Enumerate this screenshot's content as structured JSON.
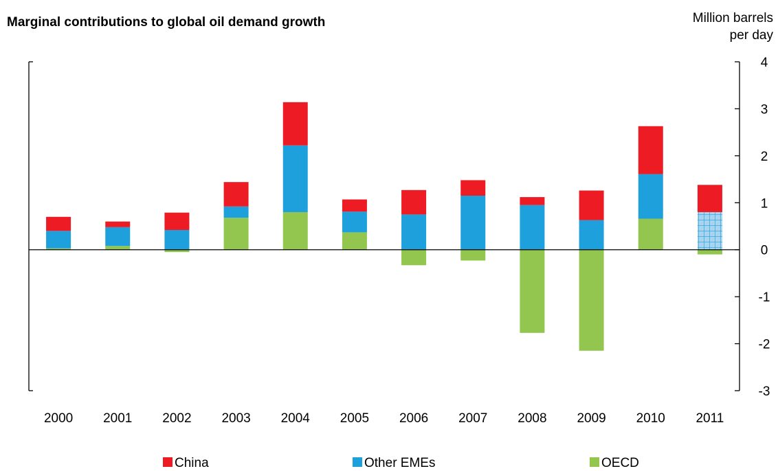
{
  "chart_data": {
    "type": "bar",
    "stacked": true,
    "title": "Marginal contributions to global oil demand growth",
    "unit_label": [
      "Million barrels",
      "per day"
    ],
    "categories": [
      "2000",
      "2001",
      "2002",
      "2003",
      "2004",
      "2005",
      "2006",
      "2007",
      "2008",
      "2009",
      "2010",
      "2011"
    ],
    "series": [
      {
        "name": "OECD",
        "color": "#92c64f",
        "values": [
          0.03,
          0.08,
          -0.05,
          0.68,
          0.8,
          0.37,
          -0.33,
          -0.23,
          -1.77,
          -2.15,
          0.66,
          -0.1
        ]
      },
      {
        "name": "Other EMEs",
        "color": "#1ea0dc",
        "values": [
          0.37,
          0.4,
          0.42,
          0.24,
          1.42,
          0.44,
          0.75,
          1.15,
          0.95,
          0.63,
          0.95,
          0.8
        ],
        "note_last_value_hatched": true
      },
      {
        "name": "China",
        "color": "#ed1c24",
        "values": [
          0.3,
          0.12,
          0.37,
          0.52,
          0.92,
          0.26,
          0.52,
          0.33,
          0.17,
          0.63,
          1.02,
          0.58
        ]
      }
    ],
    "ylim": [
      -3,
      4
    ],
    "yticks": [
      -3,
      -2,
      -1,
      0,
      1,
      2,
      3,
      4
    ],
    "axis_position": "right",
    "grid": false,
    "legend": {
      "position": "bottom",
      "order": [
        "China",
        "Other EMEs",
        "OECD"
      ]
    }
  }
}
